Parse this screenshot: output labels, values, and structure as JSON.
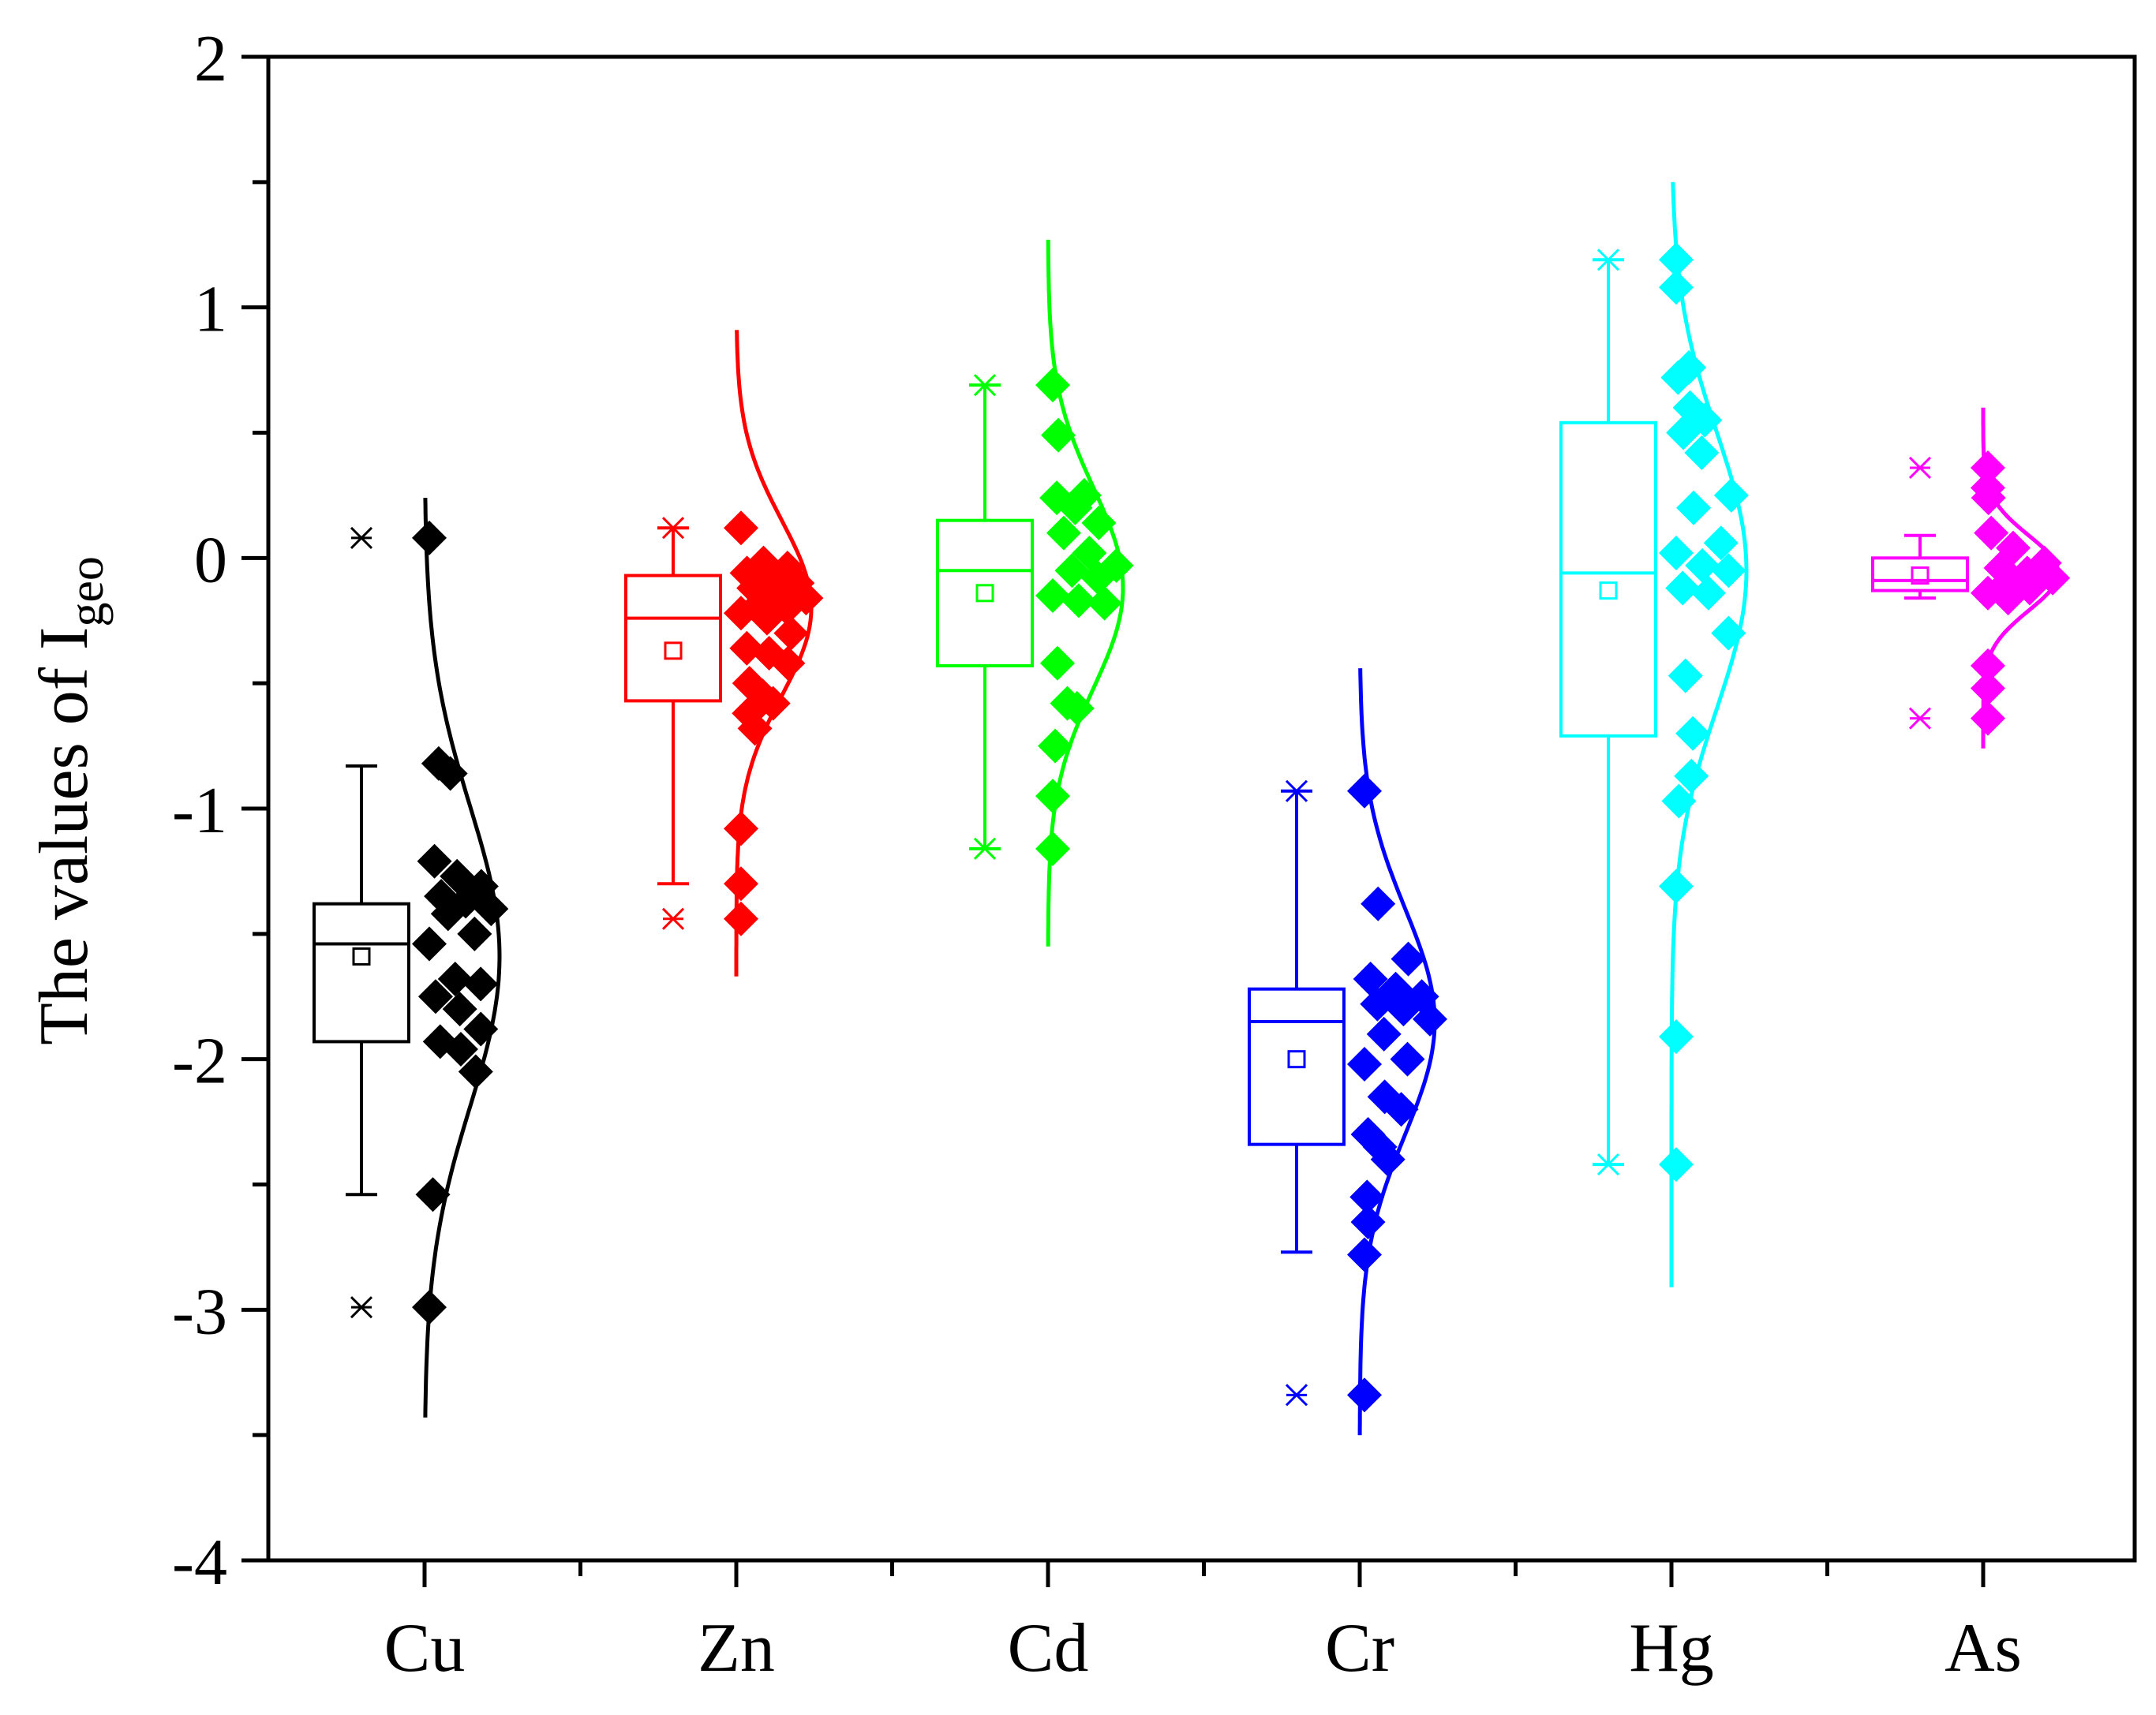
{
  "chart_data": {
    "type": "box",
    "title": "",
    "xlabel": "",
    "ylabel": "The values of I",
    "ylabel_subscript": "geo",
    "ylim": [
      -4,
      2
    ],
    "yticks": [
      -4,
      -3,
      -2,
      -1,
      0,
      1,
      2
    ],
    "ytick_labels": [
      "-4",
      "-3",
      "-2",
      "-1",
      "0",
      "1",
      "2"
    ],
    "categories": [
      "Cu",
      "Zn",
      "Cd",
      "Cr",
      "Hg",
      "As"
    ],
    "series": [
      {
        "name": "Cu",
        "color": "#000000",
        "box": {
          "q1": -1.93,
          "median": -1.54,
          "q3": -1.38,
          "mean": -1.59,
          "whisker_low": -2.54,
          "whisker_high": -0.83,
          "min": -2.99,
          "max": 0.08
        },
        "points": [
          0.08,
          -0.82,
          -0.86,
          -1.21,
          -1.27,
          -1.31,
          -1.35,
          -1.37,
          -1.4,
          -1.42,
          -1.5,
          -1.54,
          -1.68,
          -1.7,
          -1.75,
          -1.8,
          -1.88,
          -1.93,
          -1.96,
          -2.05,
          -2.54,
          -2.99
        ],
        "curve": {
          "mean": -1.59,
          "sd": 0.6,
          "ymin": -3.43,
          "ymax": 0.24
        }
      },
      {
        "name": "Zn",
        "color": "#ff0000",
        "box": {
          "q1": -0.57,
          "median": -0.24,
          "q3": -0.07,
          "mean": -0.37,
          "whisker_low": -1.3,
          "whisker_high": 0.12,
          "min": -1.44,
          "max": 0.12
        },
        "points": [
          0.12,
          -0.02,
          -0.04,
          -0.06,
          -0.08,
          -0.1,
          -0.12,
          -0.14,
          -0.16,
          -0.18,
          -0.2,
          -0.22,
          -0.24,
          -0.3,
          -0.36,
          -0.38,
          -0.42,
          -0.5,
          -0.55,
          -0.58,
          -0.62,
          -0.68,
          -1.08,
          -1.3,
          -1.44
        ],
        "curve": {
          "mean": -0.2,
          "sd": 0.35,
          "ymin": -1.67,
          "ymax": 0.91
        }
      },
      {
        "name": "Cd",
        "color": "#00ff00",
        "box": {
          "q1": -0.43,
          "median": -0.05,
          "q3": 0.15,
          "mean": -0.14,
          "whisker_low": -1.16,
          "whisker_high": 0.69,
          "min": -1.16,
          "max": 0.69
        },
        "points": [
          0.69,
          0.49,
          0.25,
          0.24,
          0.2,
          0.14,
          0.1,
          0.02,
          -0.03,
          -0.05,
          -0.08,
          -0.15,
          -0.17,
          -0.18,
          -0.42,
          -0.58,
          -0.6,
          -0.75,
          -0.95,
          -1.16
        ],
        "curve": {
          "mean": -0.12,
          "sd": 0.4,
          "ymin": -1.55,
          "ymax": 1.27
        }
      },
      {
        "name": "Cr",
        "color": "#0000ff",
        "box": {
          "q1": -2.34,
          "median": -1.85,
          "q3": -1.72,
          "mean": -2.0,
          "whisker_low": -2.77,
          "whisker_high": -0.93,
          "min": -3.34,
          "max": -0.93
        },
        "points": [
          -0.93,
          -1.38,
          -1.6,
          -1.68,
          -1.72,
          -1.75,
          -1.78,
          -1.8,
          -1.84,
          -1.9,
          -2.0,
          -2.02,
          -2.15,
          -2.2,
          -2.3,
          -2.35,
          -2.4,
          -2.55,
          -2.65,
          -2.78,
          -3.34
        ],
        "curve": {
          "mean": -1.85,
          "sd": 0.45,
          "ymin": -3.5,
          "ymax": -0.44
        }
      },
      {
        "name": "Hg",
        "color": "#00ffff",
        "box": {
          "q1": -0.71,
          "median": -0.06,
          "q3": 0.54,
          "mean": -0.13,
          "whisker_low": -2.42,
          "whisker_high": 1.19,
          "min": -2.42,
          "max": 1.19
        },
        "points": [
          1.19,
          1.08,
          0.76,
          0.72,
          0.6,
          0.55,
          0.5,
          0.42,
          0.25,
          0.2,
          0.06,
          0.02,
          -0.03,
          -0.05,
          -0.12,
          -0.14,
          -0.3,
          -0.47,
          -0.7,
          -0.87,
          -0.97,
          -1.31,
          -1.91,
          -2.42
        ],
        "curve": {
          "mean": -0.05,
          "sd": 0.55,
          "ymin": -2.91,
          "ymax": 1.5
        }
      },
      {
        "name": "As",
        "color": "#ff00ff",
        "box": {
          "q1": -0.13,
          "median": -0.09,
          "q3": 0.0,
          "mean": -0.07,
          "whisker_low": -0.16,
          "whisker_high": 0.09,
          "min": -0.64,
          "max": 0.36
        },
        "points": [
          0.36,
          0.28,
          0.24,
          0.1,
          0.04,
          -0.02,
          -0.04,
          -0.06,
          -0.08,
          -0.1,
          -0.12,
          -0.14,
          -0.16,
          -0.43,
          -0.52,
          -0.64
        ],
        "curve": {
          "mean": -0.06,
          "sd": 0.15,
          "ymin": -0.76,
          "ymax": 0.6
        }
      }
    ]
  }
}
